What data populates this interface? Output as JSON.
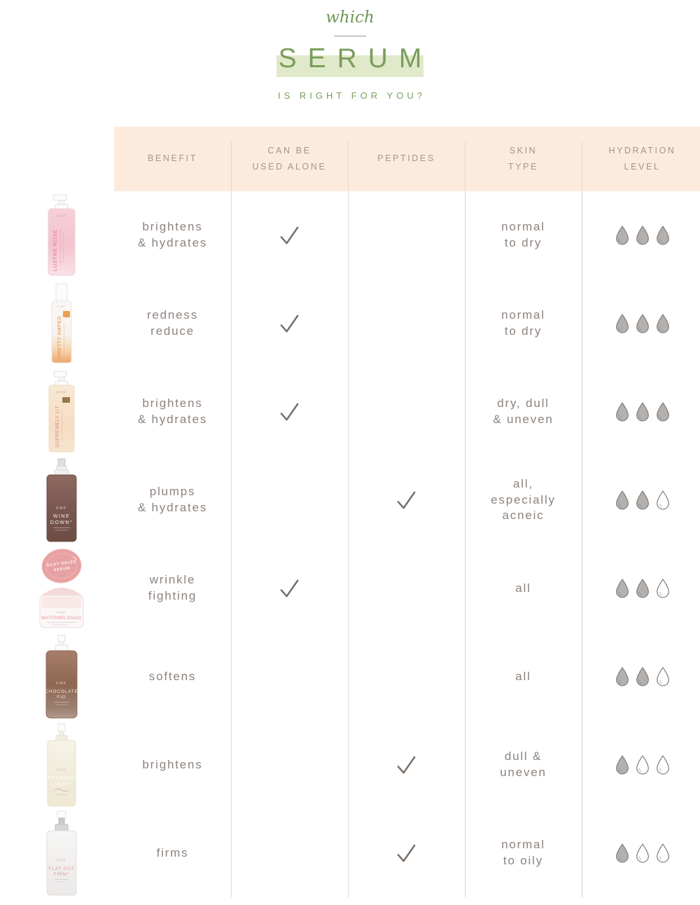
{
  "header": {
    "eyebrow": "which",
    "title": "SERUM",
    "subtitle": "IS RIGHT FOR YOU?"
  },
  "columns": [
    {
      "label": "BENEFIT"
    },
    {
      "label": "CAN BE\nUSED ALONE"
    },
    {
      "label": "PEPTIDES"
    },
    {
      "label": "SKIN\nTYPE"
    },
    {
      "label": "HYDRATION\nLEVEL"
    }
  ],
  "rows": [
    {
      "product": "Lustre Rosé",
      "benefit": "brightens\n& hydrates",
      "can_be_used_alone": true,
      "peptides": false,
      "skin_type": "normal\nto dry",
      "hydration_level": 3,
      "hydration_max": 3
    },
    {
      "product": "Pretty Amped",
      "benefit": "redness\nreduce",
      "can_be_used_alone": true,
      "peptides": false,
      "skin_type": "normal\nto dry",
      "hydration_level": 3,
      "hydration_max": 3
    },
    {
      "product": "Supremely Lit",
      "benefit": "brightens\n& hydrates",
      "can_be_used_alone": true,
      "peptides": false,
      "skin_type": "dry, dull\n& uneven",
      "hydration_level": 3,
      "hydration_max": 3
    },
    {
      "product": "Wine Down",
      "benefit": "plumps\n& hydrates",
      "can_be_used_alone": false,
      "peptides": true,
      "skin_type": "all,\nespecially\nacneic",
      "hydration_level": 2,
      "hydration_max": 3
    },
    {
      "product": "Watermelonaid",
      "benefit": "wrinkle\nfighting",
      "can_be_used_alone": true,
      "peptides": false,
      "skin_type": "all",
      "hydration_level": 2,
      "hydration_max": 3
    },
    {
      "product": "Chocolate Fig",
      "benefit": "softens",
      "can_be_used_alone": false,
      "peptides": false,
      "skin_type": "all",
      "hydration_level": 2,
      "hydration_max": 3
    },
    {
      "product": "Eternal Light",
      "benefit": "brightens",
      "can_be_used_alone": false,
      "peptides": true,
      "skin_type": "dull &\nuneven",
      "hydration_level": 1,
      "hydration_max": 3
    },
    {
      "product": "Flat Out Firm",
      "benefit": "firms",
      "can_be_used_alone": false,
      "peptides": true,
      "skin_type": "normal\nto oily",
      "hydration_level": 1,
      "hydration_max": 3
    }
  ],
  "products": [
    {
      "name": "Lustre Rosé",
      "brand": "FHF",
      "label": "LUSTRE ROSÉ"
    },
    {
      "name": "Pretty Amped",
      "brand": "FHF",
      "label": "PRETTY AMPED"
    },
    {
      "name": "Supremely Lit",
      "brand": "FHF",
      "label": "SUPREMELY LIT"
    },
    {
      "name": "Wine Down",
      "brand": "FHF",
      "label_line1": "WINE",
      "label_line2": "DOWN°"
    },
    {
      "name": "Watermelonaid",
      "brand": "FHF",
      "lid_line1": "SILKY GELÉE",
      "lid_line2": "SERUM",
      "label": "WATERMELONAID"
    },
    {
      "name": "Chocolate Fig",
      "brand": "FHF",
      "label_line1": "CHOCOLATE",
      "label_line2": "FIG"
    },
    {
      "name": "Eternal Light",
      "brand": "FHF",
      "label_line1": "ETERNAL",
      "label_line2": "LIGHT°"
    },
    {
      "name": "Flat Out Firm",
      "brand": "FHF",
      "label_line1": "FLAT OUT",
      "label_line2": "FIRM°"
    }
  ],
  "colors": {
    "accent_green": "#7b9d5d",
    "band_green": "#e0e9ca",
    "band_peach": "#fcebdc",
    "text_gray": "#8c837e",
    "check": "#7a6f67",
    "drop_fill": "#b4b0ad",
    "drop_stroke": "#827d79",
    "drop_empty_fill": "#ffffff"
  }
}
